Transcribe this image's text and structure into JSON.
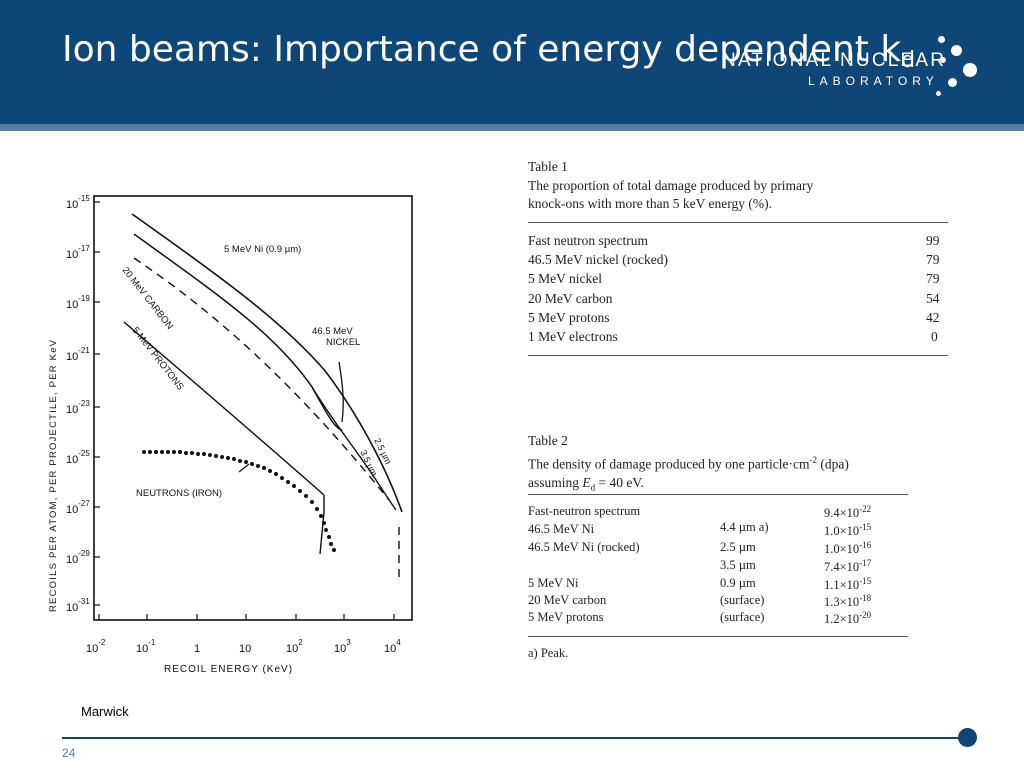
{
  "slide": {
    "title_main": "Ion beams: Importance of energy dependent k",
    "title_sub": "d",
    "credit": "Marwick",
    "page_number": "24"
  },
  "logo": {
    "line1": "NATIONAL NUCLEAR",
    "line2": "LABORATORY"
  },
  "figure": {
    "y_axis_label": "RECOILS  PER  ATOM,  PER  PROJECTILE,  PER  KeV",
    "x_axis_label": "RECOIL   ENERGY   (KeV)",
    "y_ticks": [
      {
        "base": "10",
        "exp": "-15"
      },
      {
        "base": "10",
        "exp": "-17"
      },
      {
        "base": "10",
        "exp": "-19"
      },
      {
        "base": "10",
        "exp": "-21"
      },
      {
        "base": "10",
        "exp": "-23"
      },
      {
        "base": "10",
        "exp": "-25"
      },
      {
        "base": "10",
        "exp": "-27"
      },
      {
        "base": "10",
        "exp": "-29"
      },
      {
        "base": "10",
        "exp": "-31"
      }
    ],
    "x_ticks": [
      {
        "text": "10",
        "exp": "-2"
      },
      {
        "text": "10",
        "exp": "-1"
      },
      {
        "text": "1",
        "exp": ""
      },
      {
        "text": "10",
        "exp": ""
      },
      {
        "text": "10",
        "exp": "2"
      },
      {
        "text": "10",
        "exp": "3"
      },
      {
        "text": "10",
        "exp": "4"
      }
    ],
    "labels": {
      "ni5": "5 MeV Ni  (0.9 µm)",
      "ni46_line1": "46.5 MeV",
      "ni46_line2": "NICKEL",
      "carbon": "20 MeV CARBON",
      "protons": "5 MeV PROTONS",
      "neutrons": "NEUTRONS   (IRON)",
      "depth1": "2.5 µm",
      "depth2": "3.5 µm"
    }
  },
  "table1": {
    "caption_title": "Table 1",
    "caption_line1": "The proportion of total damage produced by primary",
    "caption_line2": "knock-ons with more than 5 keV energy (%).",
    "rows": [
      {
        "label": "Fast neutron spectrum",
        "value": "99"
      },
      {
        "label": "46.5 MeV nickel (rocked)",
        "value": "79"
      },
      {
        "label": "5 MeV nickel",
        "value": "79"
      },
      {
        "label": "20 MeV carbon",
        "value": "54"
      },
      {
        "label": "5 MeV protons",
        "value": "42"
      },
      {
        "label": "1 MeV electrons",
        "value": "0"
      }
    ]
  },
  "table2": {
    "caption_title": "Table 2",
    "caption_line1a": "The density of damage produced by one particle·cm",
    "caption_line1_exp": "-2",
    "caption_line1b": " (dpa)",
    "caption_line2a": "assuming ",
    "caption_line2_sym": "E",
    "caption_line2_sub": "d",
    "caption_line2b": " = 40 eV.",
    "rows": [
      {
        "label": "Fast-neutron spectrum",
        "depth": "",
        "mant": "9.4×10",
        "exp": "-22"
      },
      {
        "label": "46.5 MeV Ni",
        "depth": "4.4 µm a)",
        "mant": "1.0×10",
        "exp": "-15"
      },
      {
        "label": "46.5 MeV Ni (rocked)",
        "depth": "2.5 µm",
        "mant": "1.0×10",
        "exp": "-16"
      },
      {
        "label": "",
        "depth": "3.5 µm",
        "mant": "7.4×10",
        "exp": "-17"
      },
      {
        "label": "5 MeV Ni",
        "depth": "0.9 µm",
        "mant": "1.1×10",
        "exp": "-15"
      },
      {
        "label": "20 MeV carbon",
        "depth": "(surface)",
        "mant": "1.3×10",
        "exp": "-18"
      },
      {
        "label": "5 MeV protons",
        "depth": "(surface)",
        "mant": "1.2×10",
        "exp": "-20"
      }
    ],
    "footnote": "a) Peak."
  },
  "colors": {
    "header": "#0e4677",
    "stripe": "#5b7d9f"
  }
}
